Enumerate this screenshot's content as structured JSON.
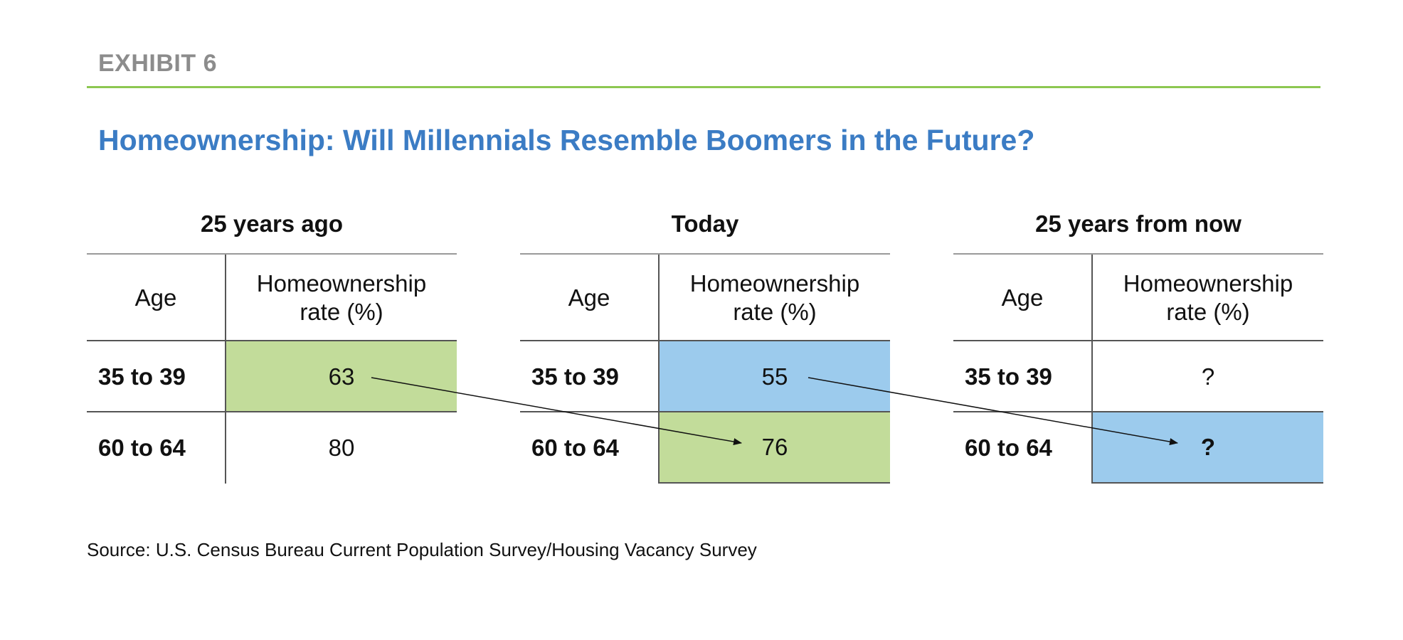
{
  "header": {
    "exhibit_label": "EXHIBIT 6",
    "title": "Homeownership: Will Millennials Resemble Boomers in the Future?"
  },
  "chart_data": {
    "type": "table",
    "title": "Homeownership: Will Millennials Resemble Boomers in the Future?",
    "columns": [
      "Age",
      "Homeownership rate (%)"
    ],
    "panels": [
      {
        "title": "25 years ago",
        "header_age": "Age",
        "header_rate_line1": "Homeownership",
        "header_rate_line2": "rate (%)",
        "rows": [
          {
            "age": "35 to 39",
            "rate": "63"
          },
          {
            "age": "60 to 64",
            "rate": "80"
          }
        ]
      },
      {
        "title": "Today",
        "header_age": "Age",
        "header_rate_line1": "Homeownership",
        "header_rate_line2": "rate (%)",
        "rows": [
          {
            "age": "35 to 39",
            "rate": "55"
          },
          {
            "age": "60 to 64",
            "rate": "76"
          }
        ]
      },
      {
        "title": "25 years from now",
        "header_age": "Age",
        "header_rate_line1": "Homeownership",
        "header_rate_line2": "rate (%)",
        "rows": [
          {
            "age": "35 to 39",
            "rate": "?"
          },
          {
            "age": "60 to 64",
            "rate": "?"
          }
        ]
      }
    ],
    "highlight_colors": {
      "green": "#c2dc9a",
      "blue": "#9ccbed"
    }
  },
  "footer": {
    "source": "Source: U.S. Census Bureau Current Population Survey/Housing Vacancy Survey"
  },
  "colors": {
    "exhibit_label": "#8c8c8c",
    "rule": "#8cc751",
    "title": "#3b7cc4"
  }
}
